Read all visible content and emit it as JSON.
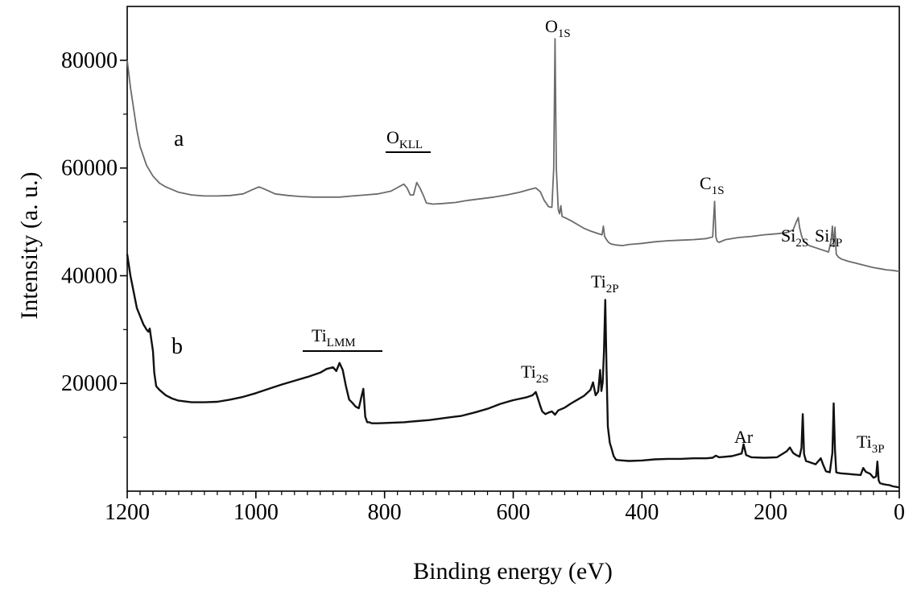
{
  "chart_data": {
    "type": "line",
    "title": "",
    "xlabel": "Binding energy (eV)",
    "ylabel": "Intensity (a. u.)",
    "xlim": [
      1200,
      0
    ],
    "ylim": [
      0,
      90000
    ],
    "x_ticks": [
      1200,
      1000,
      800,
      600,
      400,
      200,
      0
    ],
    "x_tick_labels": [
      "1200",
      "1000",
      "800",
      "600",
      "400",
      "200",
      "0"
    ],
    "y_ticks": [
      20000,
      40000,
      60000,
      80000
    ],
    "y_tick_labels": [
      "20000",
      "40000",
      "60000",
      "80000"
    ],
    "grid": false,
    "series": [
      {
        "name": "a",
        "color": "#6b6b6b",
        "x": [
          1200,
          1195,
          1190,
          1185,
          1180,
          1170,
          1160,
          1150,
          1140,
          1130,
          1120,
          1100,
          1080,
          1060,
          1040,
          1020,
          1005,
          995,
          985,
          970,
          950,
          930,
          910,
          890,
          870,
          850,
          830,
          810,
          790,
          778,
          770,
          765,
          760,
          755,
          750,
          745,
          740,
          735,
          725,
          710,
          690,
          670,
          650,
          630,
          610,
          590,
          575,
          565,
          558,
          552,
          545,
          540,
          537,
          535,
          533,
          530,
          528,
          526,
          524,
          520,
          510,
          500,
          490,
          480,
          470,
          462,
          460,
          458,
          455,
          452,
          448,
          440,
          430,
          420,
          410,
          400,
          380,
          360,
          340,
          320,
          300,
          290,
          287,
          285,
          283,
          280,
          270,
          250,
          230,
          210,
          190,
          175,
          165,
          160,
          157,
          155,
          152,
          150,
          145,
          140,
          130,
          120,
          110,
          106,
          104,
          102,
          100,
          98,
          95,
          90,
          80,
          70,
          60,
          50,
          40,
          30,
          20,
          10,
          0
        ],
        "y": [
          80000,
          75000,
          71000,
          67000,
          64000,
          60500,
          58500,
          57200,
          56500,
          56000,
          55500,
          55000,
          54800,
          54800,
          54900,
          55200,
          56000,
          56500,
          56000,
          55200,
          54900,
          54700,
          54600,
          54600,
          54600,
          54800,
          55000,
          55200,
          55700,
          56500,
          57000,
          56300,
          55000,
          55000,
          57300,
          56300,
          55000,
          53500,
          53300,
          53400,
          53600,
          54000,
          54300,
          54600,
          55000,
          55500,
          56000,
          56300,
          55600,
          54000,
          52800,
          52700,
          60000,
          84000,
          60000,
          52300,
          51500,
          53000,
          51000,
          50800,
          50200,
          49500,
          48800,
          48300,
          47900,
          47600,
          49200,
          47300,
          46700,
          46200,
          45900,
          45700,
          45600,
          45800,
          45900,
          46000,
          46300,
          46500,
          46600,
          46700,
          46900,
          47200,
          53800,
          47200,
          46400,
          46200,
          46700,
          47100,
          47300,
          47600,
          47800,
          48000,
          48500,
          50000,
          50800,
          49000,
          47500,
          46800,
          46000,
          45600,
          45200,
          44800,
          44400,
          46500,
          49200,
          45400,
          49000,
          44000,
          43500,
          43100,
          42700,
          42400,
          42100,
          41800,
          41500,
          41300,
          41100,
          41000,
          40800
        ]
      },
      {
        "name": "b",
        "color": "#111111",
        "x": [
          1200,
          1195,
          1190,
          1185,
          1180,
          1175,
          1170,
          1167,
          1165,
          1163,
          1160,
          1158,
          1155,
          1150,
          1140,
          1130,
          1120,
          1100,
          1080,
          1060,
          1040,
          1020,
          1000,
          980,
          960,
          940,
          920,
          900,
          890,
          880,
          875,
          870,
          865,
          860,
          858,
          855,
          850,
          845,
          840,
          836,
          833,
          830,
          827,
          824,
          820,
          810,
          790,
          770,
          750,
          730,
          700,
          680,
          660,
          640,
          620,
          600,
          580,
          570,
          565,
          562,
          558,
          555,
          550,
          545,
          540,
          535,
          530,
          520,
          510,
          500,
          490,
          480,
          476,
          472,
          468,
          465,
          463,
          461,
          459,
          457,
          455,
          453,
          450,
          447,
          444,
          440,
          430,
          420,
          400,
          380,
          360,
          340,
          320,
          300,
          290,
          285,
          280,
          260,
          245,
          242,
          238,
          230,
          210,
          190,
          175,
          170,
          165,
          160,
          155,
          152,
          150,
          148,
          145,
          140,
          130,
          122,
          118,
          114,
          108,
          104,
          102,
          100,
          98,
          95,
          90,
          80,
          70,
          60,
          56,
          52,
          45,
          40,
          36,
          34,
          32,
          30,
          25,
          20,
          15,
          10,
          0
        ],
        "y": [
          44000,
          40000,
          37000,
          34000,
          32500,
          31000,
          30000,
          29600,
          30200,
          28500,
          26000,
          22000,
          19500,
          18800,
          17800,
          17200,
          16800,
          16500,
          16500,
          16600,
          17000,
          17500,
          18200,
          19000,
          19800,
          20500,
          21200,
          22000,
          22700,
          23000,
          22300,
          23800,
          22500,
          19500,
          18500,
          17000,
          16400,
          15700,
          15400,
          17500,
          19000,
          13800,
          12800,
          12800,
          12600,
          12600,
          12700,
          12800,
          13000,
          13200,
          13700,
          14000,
          14600,
          15300,
          16200,
          16900,
          17400,
          17800,
          18400,
          17300,
          15800,
          14800,
          14300,
          14600,
          14800,
          14200,
          15000,
          15500,
          16300,
          17000,
          17700,
          18800,
          20200,
          17800,
          18500,
          22500,
          18600,
          20200,
          26000,
          35500,
          22500,
          12000,
          9000,
          7800,
          6500,
          5800,
          5700,
          5600,
          5700,
          5900,
          6000,
          6000,
          6100,
          6100,
          6200,
          6600,
          6300,
          6500,
          7000,
          8700,
          6700,
          6300,
          6200,
          6300,
          7400,
          8100,
          7100,
          6700,
          6400,
          8000,
          14300,
          6900,
          5600,
          5400,
          5000,
          6100,
          4800,
          3700,
          3500,
          7100,
          16300,
          7800,
          3500,
          3400,
          3300,
          3200,
          3100,
          3000,
          4300,
          3600,
          3200,
          2500,
          2700,
          5500,
          2000,
          1500,
          1300,
          1200,
          1100,
          900,
          700
        ]
      }
    ],
    "annotations": {
      "a_label": "a",
      "b_label": "b",
      "O1s": {
        "main": "O",
        "sub": "1S"
      },
      "OKLL": {
        "main": "O",
        "sub": "KLL"
      },
      "C1s": {
        "main": "C",
        "sub": "1S"
      },
      "Si2s": {
        "main": "Si",
        "sub": "2S"
      },
      "Si2p": {
        "main": "Si",
        "sub": "2P"
      },
      "Ti2p": {
        "main": "Ti",
        "sub": "2P"
      },
      "TiLMM": {
        "main": "Ti",
        "sub": "LMM"
      },
      "Ti2s": {
        "main": "Ti",
        "sub": "2S"
      },
      "Ar": {
        "main": "Ar",
        "sub": ""
      },
      "Ti3p": {
        "main": "Ti",
        "sub": "3P"
      }
    }
  }
}
